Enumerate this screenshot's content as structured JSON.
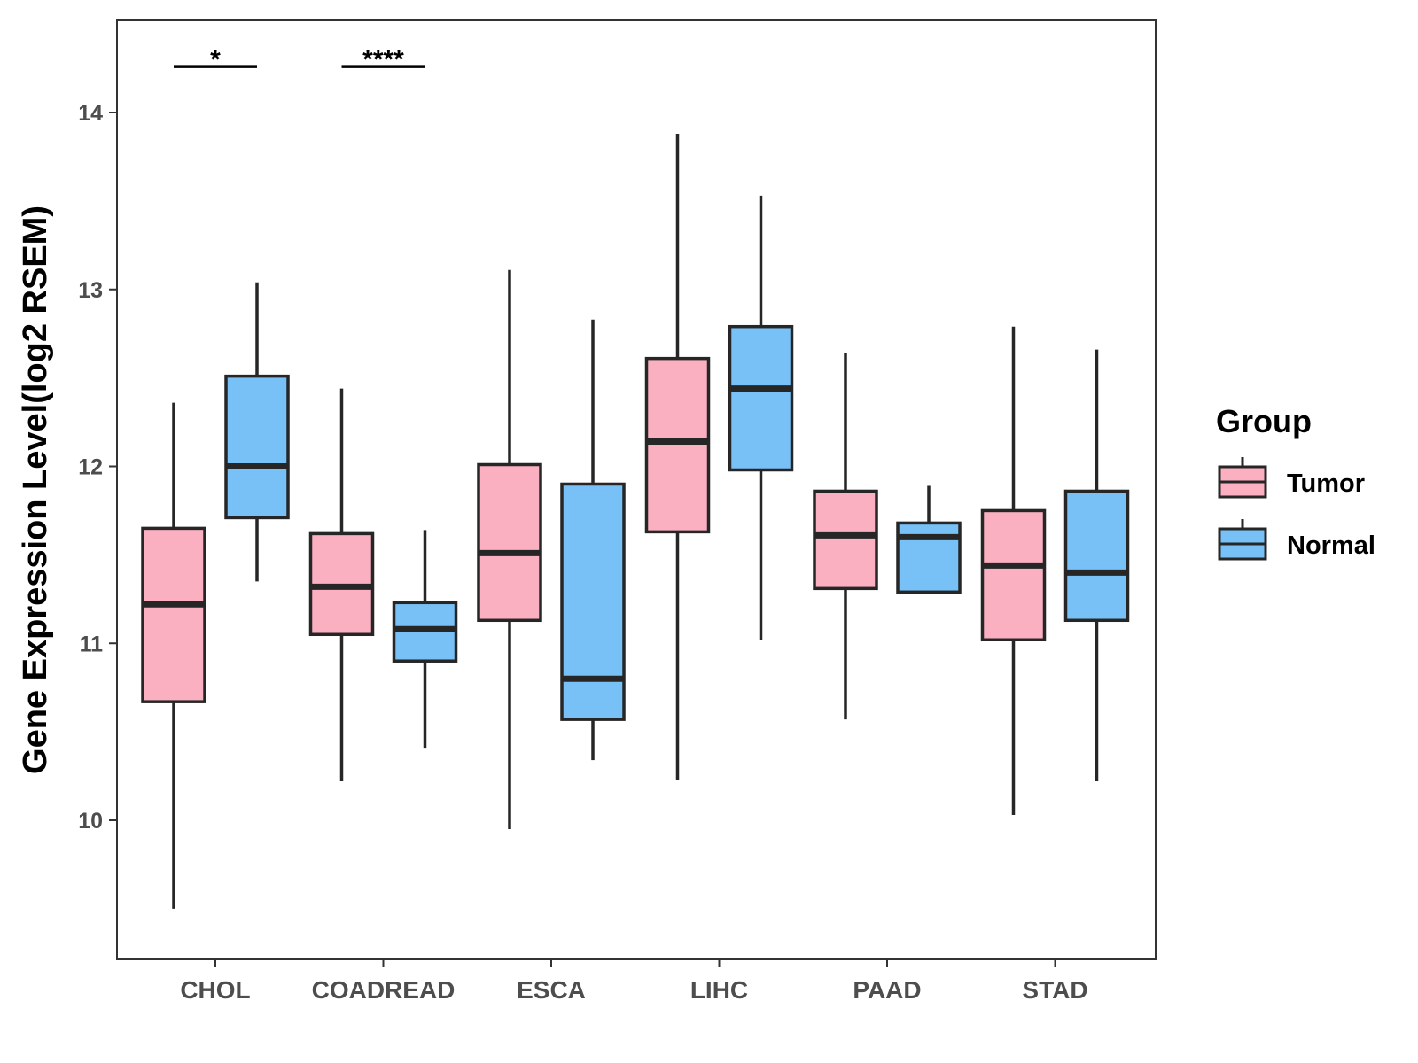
{
  "chart_data": {
    "type": "boxplot",
    "title": "",
    "xlabel": "",
    "ylabel": "Gene Expression Level(log2 RSEM)",
    "ylim": [
      9.2,
      14.5
    ],
    "yticks": [
      10,
      11,
      12,
      13,
      14
    ],
    "categories": [
      "CHOL",
      "COADREAD",
      "ESCA",
      "LIHC",
      "PAAD",
      "STAD"
    ],
    "legend": {
      "title": "Group",
      "position": "right",
      "entries": [
        {
          "label": "Tumor",
          "color": "#FBB0C1"
        },
        {
          "label": "Normal",
          "color": "#78C1F7"
        }
      ]
    },
    "series": [
      {
        "name": "Tumor",
        "color": "#FBB0C1",
        "boxes": [
          {
            "min": 9.5,
            "q1": 10.67,
            "median": 11.22,
            "q3": 11.65,
            "max": 12.36
          },
          {
            "min": 10.22,
            "q1": 11.05,
            "median": 11.32,
            "q3": 11.62,
            "max": 12.44
          },
          {
            "min": 9.95,
            "q1": 11.13,
            "median": 11.51,
            "q3": 12.01,
            "max": 13.11
          },
          {
            "min": 10.23,
            "q1": 11.63,
            "median": 12.14,
            "q3": 12.61,
            "max": 13.88
          },
          {
            "min": 10.57,
            "q1": 11.31,
            "median": 11.61,
            "q3": 11.86,
            "max": 12.64
          },
          {
            "min": 10.03,
            "q1": 11.02,
            "median": 11.44,
            "q3": 11.75,
            "max": 12.79
          }
        ]
      },
      {
        "name": "Normal",
        "color": "#78C1F7",
        "boxes": [
          {
            "min": 11.35,
            "q1": 11.71,
            "median": 12.0,
            "q3": 12.51,
            "max": 13.04
          },
          {
            "min": 10.41,
            "q1": 10.9,
            "median": 11.08,
            "q3": 11.23,
            "max": 11.64
          },
          {
            "min": 10.34,
            "q1": 10.57,
            "median": 10.8,
            "q3": 11.9,
            "max": 12.83
          },
          {
            "min": 11.02,
            "q1": 11.98,
            "median": 12.44,
            "q3": 12.79,
            "max": 13.53
          },
          {
            "min": 11.29,
            "q1": 11.29,
            "median": 11.6,
            "q3": 11.68,
            "max": 11.89
          },
          {
            "min": 10.22,
            "q1": 11.13,
            "median": 11.4,
            "q3": 11.86,
            "max": 12.66
          }
        ]
      }
    ],
    "annotations": [
      {
        "category": "CHOL",
        "label": "*",
        "y": 14.26
      },
      {
        "category": "COADREAD",
        "label": "****",
        "y": 14.26
      }
    ]
  }
}
